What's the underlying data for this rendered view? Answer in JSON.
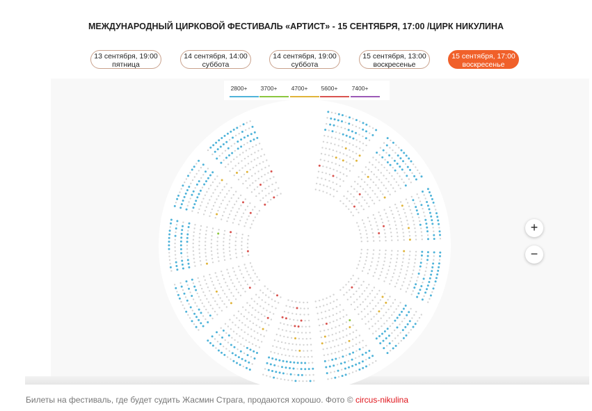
{
  "title": "МЕЖДУНАРОДНЫЙ ЦИРКОВОЙ ФЕСТИВАЛЬ «АРТИСТ» - 15 СЕНТЯБРЯ, 17:00 /ЦИРК НИКУЛИНА",
  "sessions": [
    {
      "date": "13 сентября, 19:00",
      "day": "пятница",
      "active": false
    },
    {
      "date": "14 сентября, 14:00",
      "day": "суббота",
      "active": false
    },
    {
      "date": "14 сентября, 19:00",
      "day": "суббота",
      "active": false
    },
    {
      "date": "15 сентября, 13:00",
      "day": "воскресенье",
      "active": false
    },
    {
      "date": "15 сентября, 17:00",
      "day": "воскресенье",
      "active": true
    }
  ],
  "legend": [
    {
      "label": "2800+",
      "color": "#4fb3d9"
    },
    {
      "label": "3700+",
      "color": "#8cc63f"
    },
    {
      "label": "4700+",
      "color": "#e0b43a"
    },
    {
      "label": "5600+",
      "color": "#d9534f"
    },
    {
      "label": "7400+",
      "color": "#9b59b6"
    }
  ],
  "zoom": {
    "in": "+",
    "out": "−"
  },
  "caption": {
    "text": "Билеты на фестиваль, где будет судить Жасмин Страга, продаются хорошо. Фото © ",
    "link": "circus-nikulina"
  },
  "colors": {
    "accent": "#f0602a",
    "seat_empty": "#d4d4d4"
  }
}
